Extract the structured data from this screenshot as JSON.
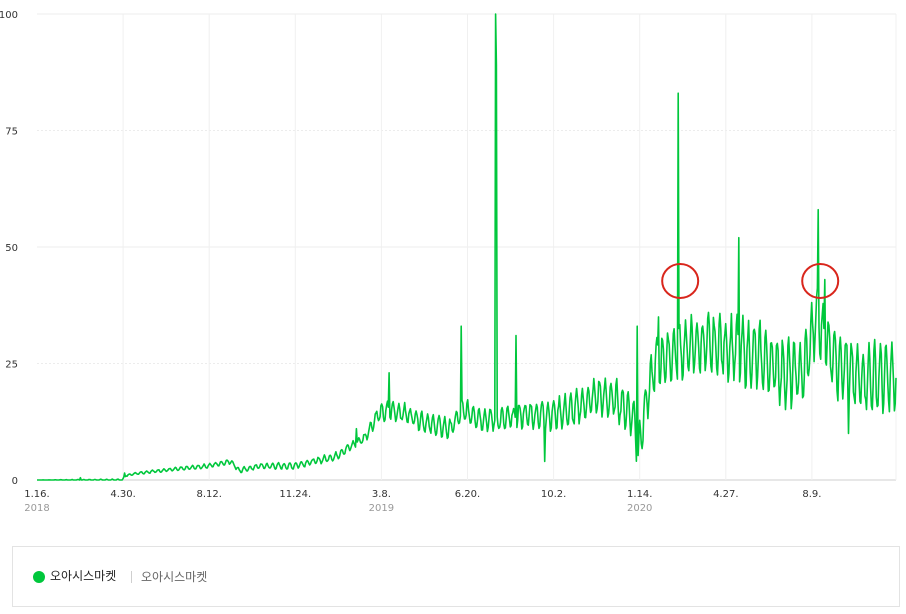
{
  "chart_data": {
    "type": "line",
    "title": "",
    "xlabel": "",
    "ylabel": "",
    "ylim": [
      0,
      100
    ],
    "yticks": [
      "0",
      "25",
      "50",
      "75",
      "100"
    ],
    "xticks": [
      {
        "label": "1.16.",
        "year": "2018"
      },
      {
        "label": "4.30.",
        "year": ""
      },
      {
        "label": "8.12.",
        "year": ""
      },
      {
        "label": "11.24.",
        "year": ""
      },
      {
        "label": "3.8.",
        "year": "2019"
      },
      {
        "label": "6.20.",
        "year": ""
      },
      {
        "label": "10.2.",
        "year": ""
      },
      {
        "label": "1.14.",
        "year": "2020"
      },
      {
        "label": "4.27.",
        "year": ""
      },
      {
        "label": "8.9.",
        "year": ""
      }
    ],
    "series_color": "#00c73c",
    "series": [
      {
        "name": "오아시스마켓",
        "x_start": "2018-01-16",
        "x_end": "2020-11-30",
        "anchors": [
          [
            "2018-01-16",
            0
          ],
          [
            "2018-04-15",
            0
          ],
          [
            "2018-04-30",
            0
          ],
          [
            "2018-05-05",
            1
          ],
          [
            "2018-05-20",
            1.5
          ],
          [
            "2018-06-15",
            2
          ],
          [
            "2018-07-15",
            2.5
          ],
          [
            "2018-08-12",
            3
          ],
          [
            "2018-09-10",
            4
          ],
          [
            "2018-09-20",
            2
          ],
          [
            "2018-10-15",
            3
          ],
          [
            "2018-11-24",
            3
          ],
          [
            "2018-12-20",
            4
          ],
          [
            "2019-01-15",
            5
          ],
          [
            "2019-02-01",
            7
          ],
          [
            "2019-02-20",
            9
          ],
          [
            "2019-03-08",
            14
          ],
          [
            "2019-03-25",
            15
          ],
          [
            "2019-04-15",
            14
          ],
          [
            "2019-05-10",
            12
          ],
          [
            "2019-06-05",
            11
          ],
          [
            "2019-06-20",
            15
          ],
          [
            "2019-07-15",
            13
          ],
          [
            "2019-08-10",
            13
          ],
          [
            "2019-09-01",
            14
          ],
          [
            "2019-10-02",
            14
          ],
          [
            "2019-11-01",
            15
          ],
          [
            "2019-12-01",
            18
          ],
          [
            "2019-12-25",
            17
          ],
          [
            "2020-01-14",
            14
          ],
          [
            "2020-01-20",
            6
          ],
          [
            "2020-01-28",
            15
          ],
          [
            "2020-02-10",
            25
          ],
          [
            "2020-03-01",
            27
          ],
          [
            "2020-04-01",
            29
          ],
          [
            "2020-04-27",
            29
          ],
          [
            "2020-05-20",
            28
          ],
          [
            "2020-06-20",
            26
          ],
          [
            "2020-07-20",
            23
          ],
          [
            "2020-08-09",
            23
          ],
          [
            "2020-08-25",
            35
          ],
          [
            "2020-09-10",
            28
          ],
          [
            "2020-10-10",
            22
          ],
          [
            "2020-11-01",
            22
          ],
          [
            "2020-11-30",
            22
          ]
        ],
        "spikes": [
          [
            "2018-03-10",
            0.5
          ],
          [
            "2018-05-03",
            1.5
          ],
          [
            "2019-02-10",
            11
          ],
          [
            "2019-03-22",
            23
          ],
          [
            "2019-06-18",
            33
          ],
          [
            "2019-07-30",
            100
          ],
          [
            "2019-07-31",
            89
          ],
          [
            "2019-08-24",
            31
          ],
          [
            "2019-09-28",
            4
          ],
          [
            "2020-01-19",
            33
          ],
          [
            "2020-02-14",
            35
          ],
          [
            "2020-03-09",
            83
          ],
          [
            "2020-05-22",
            52
          ],
          [
            "2020-08-27",
            58
          ],
          [
            "2020-09-04",
            43
          ],
          [
            "2020-09-20",
            17
          ],
          [
            "2020-10-03",
            10
          ]
        ],
        "weekly_amplitude": [
          [
            "2018-01-16",
            0
          ],
          [
            "2018-04-30",
            0.2
          ],
          [
            "2018-08-12",
            0.4
          ],
          [
            "2019-02-15",
            0.8
          ],
          [
            "2019-03-15",
            1.8
          ],
          [
            "2019-08-01",
            2.2
          ],
          [
            "2019-11-01",
            3.2
          ],
          [
            "2020-01-01",
            3.8
          ],
          [
            "2020-03-15",
            5.5
          ],
          [
            "2020-07-01",
            6.5
          ],
          [
            "2020-11-30",
            6.5
          ]
        ]
      }
    ],
    "annotations": [
      {
        "type": "circle",
        "color": "#d9261c",
        "near": "2020-03-09"
      },
      {
        "type": "circle",
        "color": "#d9261c",
        "near": "2020-08-27"
      }
    ],
    "grid": true,
    "legend": "bottom"
  },
  "legend": {
    "series_name": "오아시스마켓",
    "term": "오아시스마켓"
  }
}
